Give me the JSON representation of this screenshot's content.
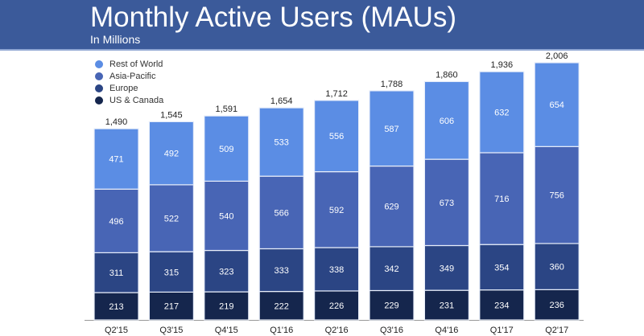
{
  "header": {
    "title": "Monthly Active Users (MAUs)",
    "subtitle": "In Millions"
  },
  "chart_data": {
    "type": "bar",
    "stacked": true,
    "title": "Monthly Active Users (MAUs)",
    "subtitle": "In Millions",
    "categories": [
      "Q2'15",
      "Q3'15",
      "Q4'15",
      "Q1'16",
      "Q2'16",
      "Q3'16",
      "Q4'16",
      "Q1'17",
      "Q2'17"
    ],
    "totals": [
      "1,490",
      "1,545",
      "1,591",
      "1,654",
      "1,712",
      "1,788",
      "1,860",
      "1,936",
      "2,006"
    ],
    "series": [
      {
        "name": "US & Canada",
        "color": "#15264d",
        "values": [
          213,
          217,
          219,
          222,
          226,
          229,
          231,
          234,
          236
        ]
      },
      {
        "name": "Europe",
        "color": "#2b4584",
        "values": [
          311,
          315,
          323,
          333,
          338,
          342,
          349,
          354,
          360
        ]
      },
      {
        "name": "Asia-Pacific",
        "color": "#4865b5",
        "values": [
          496,
          522,
          540,
          566,
          592,
          629,
          673,
          716,
          756
        ]
      },
      {
        "name": "Rest of World",
        "color": "#5b8de4",
        "values": [
          471,
          492,
          509,
          533,
          556,
          587,
          606,
          632,
          654
        ]
      }
    ],
    "legend_order": [
      "Rest of World",
      "Asia-Pacific",
      "Europe",
      "US & Canada"
    ],
    "legend_position": "top-left",
    "grid": false,
    "ylim": [
      0,
      2006
    ]
  }
}
